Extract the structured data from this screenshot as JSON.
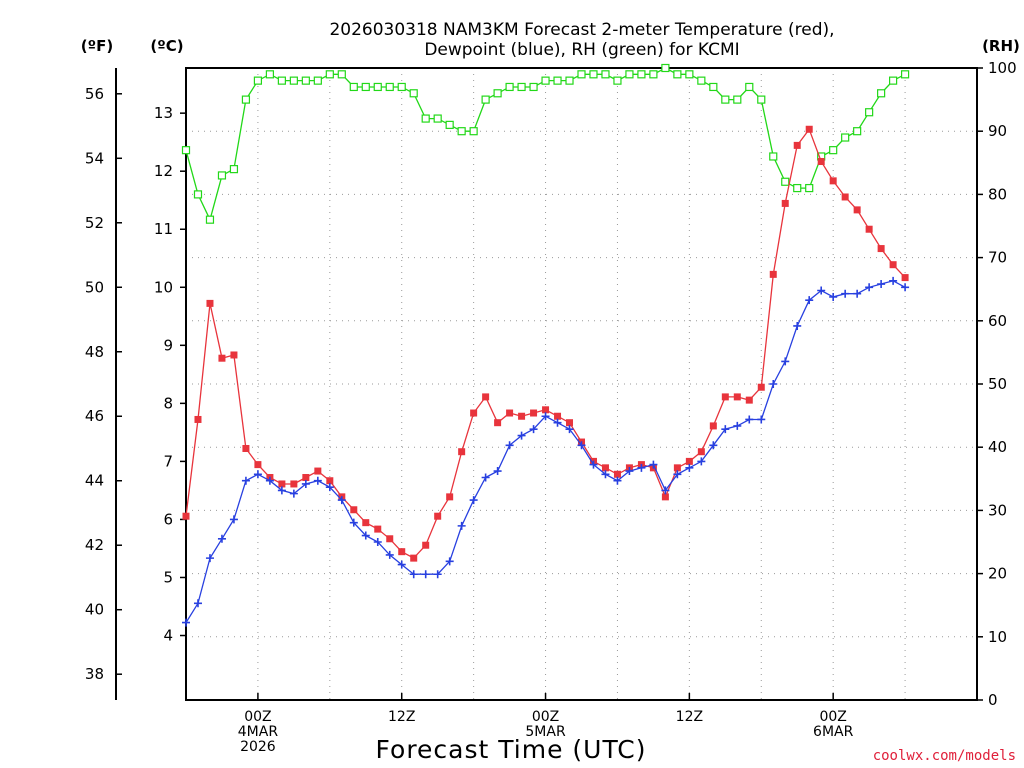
{
  "chart_data": {
    "type": "line",
    "title_line1": "2026030318 NAM3KM Forecast 2-meter Temperature (red),",
    "title_line2": "Dewpoint (blue), RH (green) for KCMI",
    "xlabel": "Forecast Time (UTC)",
    "credit": "coolwx.com/models",
    "units": {
      "f": "(ºF)",
      "c": "(ºC)",
      "rh": "(RH)"
    },
    "x_hours": [
      -6,
      -5,
      -4,
      -3,
      -2,
      -1,
      0,
      1,
      2,
      3,
      4,
      5,
      6,
      7,
      8,
      9,
      10,
      11,
      12,
      13,
      14,
      15,
      16,
      17,
      18,
      19,
      20,
      21,
      22,
      23,
      24,
      25,
      26,
      27,
      28,
      29,
      30,
      31,
      32,
      33,
      34,
      35,
      36,
      37,
      38,
      39,
      40,
      41,
      42,
      43,
      44,
      45,
      46,
      47,
      48,
      49,
      50,
      51,
      52,
      53,
      54,
      55,
      56,
      57,
      58,
      59,
      60
    ],
    "xlim": [
      -6,
      60
    ],
    "y_f_lim": [
      37.2,
      56.8
    ],
    "y_c_lim": [
      2.889,
      13.778
    ],
    "y_rh_lim": [
      0,
      100
    ],
    "f_ticks": [
      38,
      40,
      42,
      44,
      46,
      48,
      50,
      52,
      54,
      56
    ],
    "c_ticks": [
      4,
      5,
      6,
      7,
      8,
      9,
      10,
      11,
      12,
      13
    ],
    "rh_ticks": [
      0,
      10,
      20,
      30,
      40,
      50,
      60,
      70,
      80,
      90,
      100
    ],
    "x_ticks": [
      {
        "hour": 0,
        "lines": [
          "00Z",
          "4MAR",
          "2026"
        ]
      },
      {
        "hour": 12,
        "lines": [
          "12Z"
        ]
      },
      {
        "hour": 24,
        "lines": [
          "00Z",
          "5MAR"
        ]
      },
      {
        "hour": 36,
        "lines": [
          "12Z"
        ]
      },
      {
        "hour": 48,
        "lines": [
          "00Z",
          "6MAR"
        ]
      }
    ],
    "series": [
      {
        "name": "Temperature",
        "unit": "F",
        "color": "#e8343c",
        "marker": "filled-square",
        "values": [
          42.9,
          45.9,
          49.5,
          47.8,
          47.9,
          45.0,
          44.5,
          44.1,
          43.9,
          43.9,
          44.1,
          44.3,
          44.0,
          43.5,
          43.1,
          42.7,
          42.5,
          42.2,
          41.8,
          41.6,
          42.0,
          42.9,
          43.5,
          44.9,
          46.1,
          46.6,
          45.8,
          46.1,
          46.0,
          46.1,
          46.2,
          46.0,
          45.8,
          45.2,
          44.6,
          44.4,
          44.2,
          44.4,
          44.5,
          44.4,
          43.5,
          44.4,
          44.6,
          44.9,
          45.7,
          46.6,
          46.6,
          46.5,
          46.9,
          50.4,
          52.6,
          54.4,
          54.9,
          53.9,
          53.3,
          52.8,
          52.4,
          51.8,
          51.2,
          50.7,
          50.3
        ]
      },
      {
        "name": "Dewpoint",
        "unit": "F",
        "color": "#2840e0",
        "marker": "plus",
        "values": [
          39.6,
          40.2,
          41.6,
          42.2,
          42.8,
          44.0,
          44.2,
          44.0,
          43.7,
          43.6,
          43.9,
          44.0,
          43.8,
          43.4,
          42.7,
          42.3,
          42.1,
          41.7,
          41.4,
          41.1,
          41.1,
          41.1,
          41.5,
          42.6,
          43.4,
          44.1,
          44.3,
          45.1,
          45.4,
          45.6,
          46.0,
          45.8,
          45.6,
          45.1,
          44.5,
          44.2,
          44.0,
          44.3,
          44.4,
          44.5,
          43.7,
          44.2,
          44.4,
          44.6,
          45.1,
          45.6,
          45.7,
          45.9,
          45.9,
          47.0,
          47.7,
          48.8,
          49.6,
          49.9,
          49.7,
          49.8,
          49.8,
          50.0,
          50.1,
          50.2,
          50.0
        ]
      },
      {
        "name": "RH",
        "unit": "%",
        "color": "#22d818",
        "marker": "open-square",
        "values": [
          87,
          80,
          76,
          83,
          84,
          95,
          98,
          99,
          98,
          98,
          98,
          98,
          99,
          99,
          97,
          97,
          97,
          97,
          97,
          96,
          92,
          92,
          91,
          90,
          90,
          95,
          96,
          97,
          97,
          97,
          98,
          98,
          98,
          99,
          99,
          99,
          98,
          99,
          99,
          99,
          100,
          99,
          99,
          98,
          97,
          95,
          95,
          97,
          95,
          86,
          82,
          81,
          81,
          86,
          87,
          89,
          90,
          93,
          96,
          98,
          99
        ]
      }
    ]
  }
}
